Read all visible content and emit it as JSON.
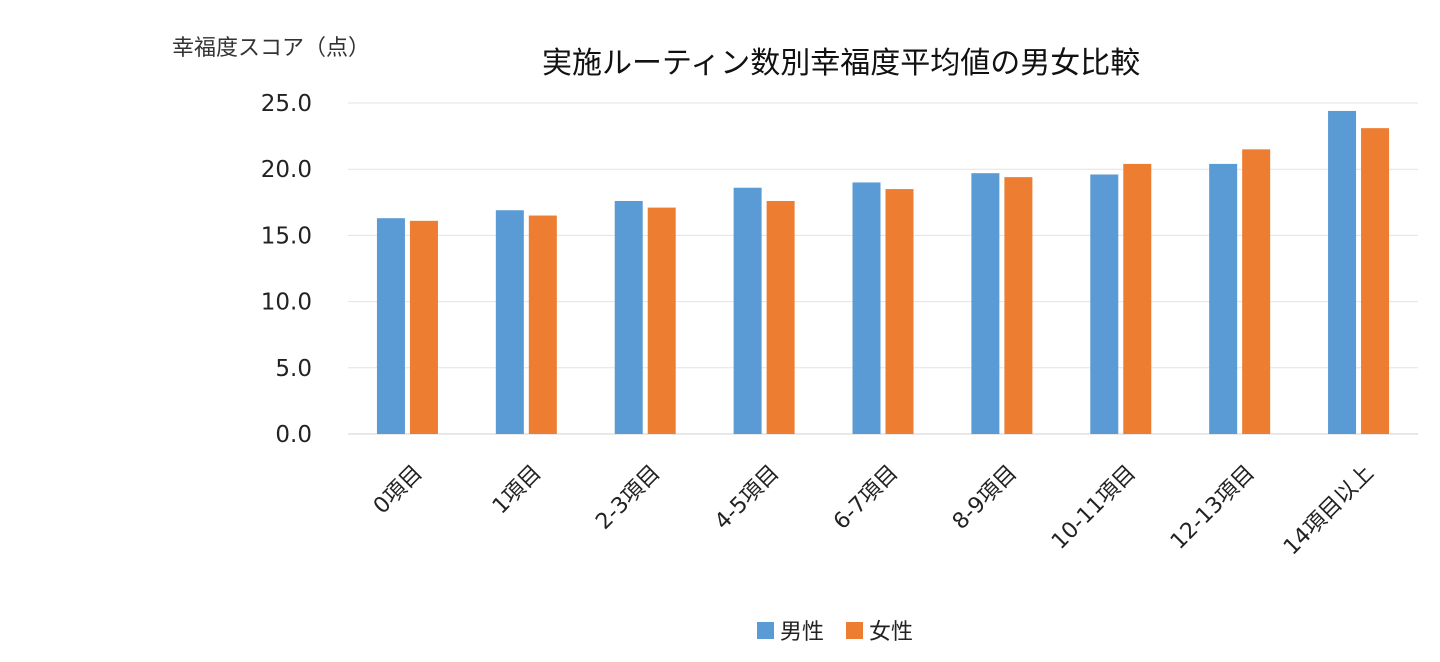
{
  "chart_data": {
    "type": "bar",
    "title": "実施ルーティン数別幸福度平均値の男女比較",
    "ylabel": "幸福度スコア（点）",
    "xlabel": "",
    "ylim": [
      0,
      25
    ],
    "yticks": [
      "0.0",
      "5.0",
      "10.0",
      "15.0",
      "20.0",
      "25.0"
    ],
    "grid": true,
    "legend_position": "bottom",
    "categories": [
      "0項目",
      "1項目",
      "2-3項目",
      "4-5項目",
      "6-7項目",
      "8-9項目",
      "10-11項目",
      "12-13項目",
      "14項目以上"
    ],
    "series": [
      {
        "name": "男性",
        "color": "#5b9bd5",
        "values": [
          16.3,
          16.9,
          17.6,
          18.6,
          19.0,
          19.7,
          19.6,
          20.4,
          24.4
        ]
      },
      {
        "name": "女性",
        "color": "#ed7d31",
        "values": [
          16.1,
          16.5,
          17.1,
          17.6,
          18.5,
          19.4,
          20.4,
          21.5,
          23.1
        ]
      }
    ]
  }
}
